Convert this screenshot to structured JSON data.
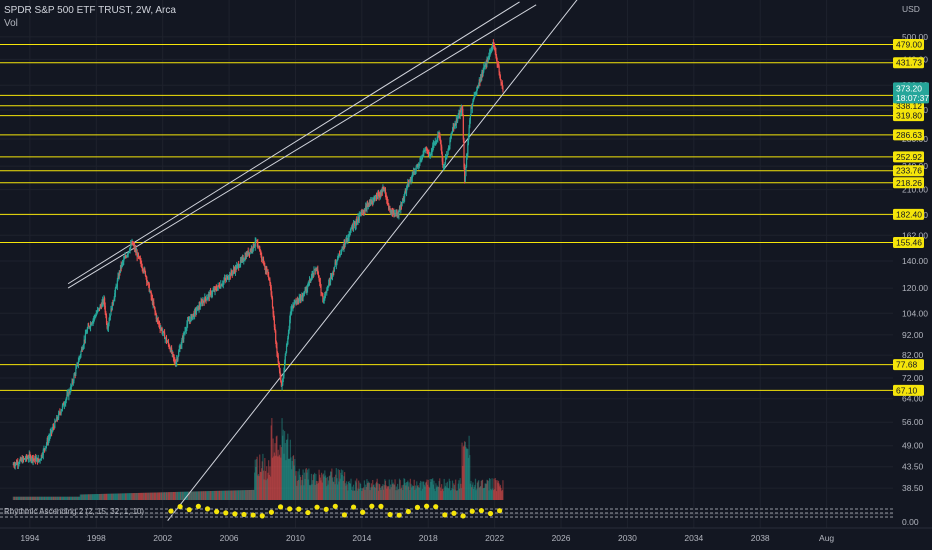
{
  "header": {
    "title": "SPDR S&P 500 ETF TRUST, 2W, Arca",
    "volume_label": "Vol"
  },
  "indicator_label": "Rhythmic Ascending 2 (2, 15, 32, 1, 10)",
  "chart_data": {
    "type": "candlestick",
    "title": "SPDR S&P 500 ETF TRUST, 2W, Arca",
    "currency_label": "USD",
    "scale": "log",
    "y_range": [
      36,
      520
    ],
    "x_range": [
      1992.5,
      2046
    ],
    "x_ticks": [
      "1994",
      "1998",
      "2002",
      "2006",
      "2010",
      "2014",
      "2018",
      "2022",
      "2026",
      "2030",
      "2034",
      "2038",
      "Aug"
    ],
    "y_ticks": [
      500.0,
      440.0,
      380.0,
      330.0,
      280.0,
      240.0,
      210.0,
      182.0,
      162.0,
      140.0,
      120.0,
      104.0,
      92.0,
      82.0,
      72.0,
      64.0,
      56.0,
      49.0,
      43.5,
      38.5
    ],
    "indicator_zero_label": "0.00",
    "current_price": {
      "value": "373.20",
      "countdown": "18:07:37",
      "color": "#26a69a"
    },
    "horizontal_levels": [
      479.0,
      431.73,
      358.75,
      338.12,
      319.8,
      286.63,
      252.92,
      233.76,
      218.26,
      182.4,
      155.46,
      77.68,
      67.1
    ],
    "level_color": "#f5e50a",
    "price_path": [
      {
        "t": 1993.0,
        "p": 44
      },
      {
        "t": 1994.0,
        "p": 46
      },
      {
        "t": 1994.6,
        "p": 45
      },
      {
        "t": 1995.5,
        "p": 55
      },
      {
        "t": 1996.5,
        "p": 68
      },
      {
        "t": 1997.5,
        "p": 95
      },
      {
        "t": 1998.5,
        "p": 112
      },
      {
        "t": 1998.7,
        "p": 96
      },
      {
        "t": 1999.5,
        "p": 135
      },
      {
        "t": 2000.2,
        "p": 155
      },
      {
        "t": 2001.0,
        "p": 130
      },
      {
        "t": 2001.7,
        "p": 100
      },
      {
        "t": 2002.5,
        "p": 85
      },
      {
        "t": 2002.8,
        "p": 78
      },
      {
        "t": 2003.5,
        "p": 98
      },
      {
        "t": 2004.5,
        "p": 112
      },
      {
        "t": 2005.5,
        "p": 122
      },
      {
        "t": 2006.5,
        "p": 135
      },
      {
        "t": 2007.7,
        "p": 156
      },
      {
        "t": 2008.5,
        "p": 125
      },
      {
        "t": 2008.9,
        "p": 85
      },
      {
        "t": 2009.2,
        "p": 68
      },
      {
        "t": 2009.8,
        "p": 108
      },
      {
        "t": 2010.5,
        "p": 115
      },
      {
        "t": 2011.3,
        "p": 135
      },
      {
        "t": 2011.7,
        "p": 112
      },
      {
        "t": 2012.5,
        "p": 140
      },
      {
        "t": 2013.5,
        "p": 170
      },
      {
        "t": 2014.5,
        "p": 195
      },
      {
        "t": 2015.4,
        "p": 210
      },
      {
        "t": 2015.7,
        "p": 186
      },
      {
        "t": 2016.2,
        "p": 182
      },
      {
        "t": 2016.8,
        "p": 215
      },
      {
        "t": 2017.9,
        "p": 266
      },
      {
        "t": 2018.1,
        "p": 255
      },
      {
        "t": 2018.7,
        "p": 290
      },
      {
        "t": 2018.95,
        "p": 235
      },
      {
        "t": 2019.5,
        "p": 295
      },
      {
        "t": 2020.1,
        "p": 335
      },
      {
        "t": 2020.22,
        "p": 218
      },
      {
        "t": 2020.6,
        "p": 330
      },
      {
        "t": 2021.0,
        "p": 375
      },
      {
        "t": 2021.5,
        "p": 430
      },
      {
        "t": 2021.95,
        "p": 479
      },
      {
        "t": 2022.3,
        "p": 415
      },
      {
        "t": 2022.5,
        "p": 373
      }
    ],
    "trend_lines": [
      {
        "from": {
          "t": 1996.3,
          "p": 120
        },
        "to": {
          "t": 2024.5,
          "p": 600
        }
      },
      {
        "from": {
          "t": 1996.3,
          "p": 123
        },
        "to": {
          "t": 2023.5,
          "p": 610
        }
      },
      {
        "from": {
          "t": 2002.3,
          "p": 32
        },
        "to": {
          "t": 2027.0,
          "p": 620
        }
      }
    ]
  }
}
